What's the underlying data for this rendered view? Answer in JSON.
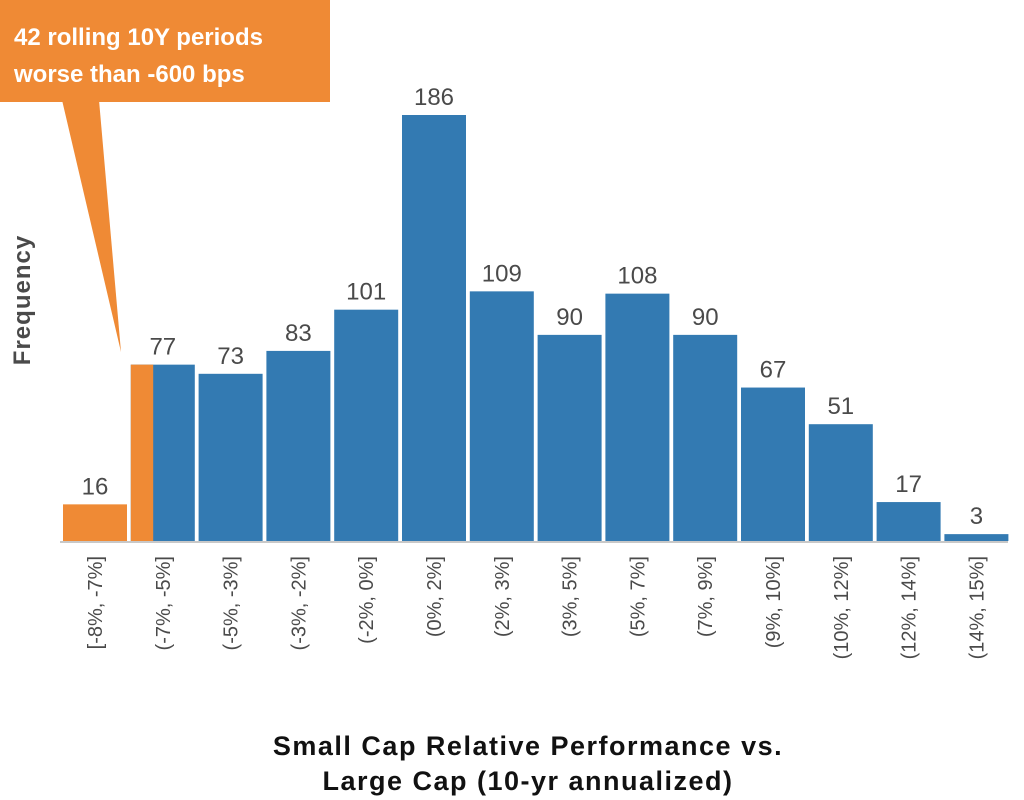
{
  "chart_data": {
    "type": "bar",
    "title": "",
    "xlabel": "Small Cap Relative Performance vs. Large Cap (10-yr annualized)",
    "xlabel_lines": [
      "Small Cap Relative Performance vs.",
      "Large Cap (10-yr annualized)"
    ],
    "ylabel": "Frequency",
    "ylim": [
      0,
      186
    ],
    "grid": false,
    "legend": null,
    "categories": [
      "[-8%, -7%]",
      "(-7%, -5%]",
      "(-5%, -3%]",
      "(-3%, -2%]",
      "(-2%, 0%]",
      "(0%, 2%]",
      "(2%, 3%]",
      "(3%, 5%]",
      "(5%, 7%]",
      "(7%, 9%]",
      "(9%, 10%]",
      "(10%, 12%]",
      "(12%, 14%]",
      "(14%, 15%]"
    ],
    "values": [
      16,
      77,
      73,
      83,
      101,
      186,
      109,
      90,
      108,
      90,
      67,
      51,
      17,
      3
    ],
    "highlight": {
      "description": "Portion of bins worse than -600 bps shaded orange",
      "full_bins": [
        0
      ],
      "partial_bins": [
        {
          "index": 1,
          "fraction": 0.35
        }
      ]
    },
    "colors": {
      "bar": "#337ab2",
      "highlight": "#ef8a35",
      "axis": "#c8c8c8",
      "label": "#4a4a4a"
    },
    "annotation": {
      "lines": [
        "42 rolling 10Y periods",
        "worse than -600 bps"
      ],
      "points_to_category": "(-7%, -5%]"
    }
  }
}
